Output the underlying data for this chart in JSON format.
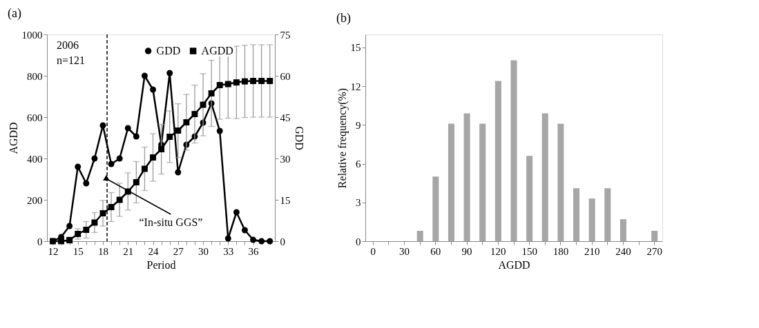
{
  "chart_data": [
    {
      "type": "line",
      "title": "(a)",
      "xlabel": "Period",
      "ylabel": "AGDD",
      "y2label": "GDD",
      "x": [
        12,
        13,
        14,
        15,
        16,
        17,
        18,
        19,
        20,
        21,
        22,
        23,
        24,
        25,
        26,
        27,
        28,
        29,
        30,
        31,
        32,
        33,
        34,
        35,
        36,
        37,
        38
      ],
      "xlim": [
        11.3,
        38.6
      ],
      "xticks": [
        12,
        {
          "value": 13,
          "label": null
        },
        {
          "value": 14,
          "label": null
        },
        15,
        {
          "value": 16,
          "label": null
        },
        {
          "value": 17,
          "label": null
        },
        18,
        {
          "value": 19,
          "label": null
        },
        {
          "value": 20,
          "label": null
        },
        21,
        {
          "value": 22,
          "label": null
        },
        {
          "value": 23,
          "label": null
        },
        24,
        {
          "value": 25,
          "label": null
        },
        {
          "value": 26,
          "label": null
        },
        27,
        {
          "value": 28,
          "label": null
        },
        {
          "value": 29,
          "label": null
        },
        30,
        {
          "value": 31,
          "label": null
        },
        {
          "value": 32,
          "label": null
        },
        33,
        {
          "value": 34,
          "label": null
        },
        {
          "value": 35,
          "label": null
        },
        36,
        {
          "value": 37,
          "label": null
        },
        {
          "value": 38,
          "label": null
        }
      ],
      "ylim": [
        0,
        1000
      ],
      "yticks": [
        0,
        200,
        400,
        600,
        800,
        1000
      ],
      "y2lim": [
        0,
        75
      ],
      "y2ticks": [
        0,
        15,
        30,
        45,
        60,
        75
      ],
      "grid": false,
      "legend": "top right",
      "series": [
        {
          "name": "GDD",
          "color": "#000000",
          "marker": "circle",
          "axis": "y2",
          "values": [
            0,
            1.5,
            5.5,
            27,
            21,
            30,
            42,
            28,
            30,
            41,
            38,
            60,
            55,
            35,
            61,
            25,
            35,
            38,
            43,
            50,
            40,
            1,
            10.5,
            4,
            0.5,
            0,
            0
          ]
        },
        {
          "name": "AGDD",
          "color": "#000000",
          "marker": "square",
          "values": [
            0,
            0,
            5,
            35,
            55,
            90,
            135,
            165,
            200,
            240,
            285,
            350,
            405,
            445,
            505,
            535,
            575,
            615,
            660,
            715,
            755,
            760,
            768,
            773,
            775,
            775,
            775
          ],
          "errors": [
            null,
            5,
            15,
            25,
            40,
            48,
            62,
            70,
            80,
            90,
            100,
            105,
            115,
            120,
            125,
            130,
            135,
            140,
            150,
            160,
            165,
            165,
            175,
            175,
            175,
            175,
            175
          ]
        }
      ],
      "ref_lines": [
        {
          "axis": "x",
          "value": 18.5,
          "line_style": "dashed",
          "color": "#000000"
        }
      ],
      "annotations": [
        "2006",
        "n=121",
        {
          "text": "“In-situ GGS”",
          "x": 18.5,
          "y": 300
        }
      ]
    },
    {
      "type": "bar",
      "title": "(b)",
      "xlabel": "AGDD",
      "ylabel": "Relative frequency(%)",
      "categories": [
        "0",
        null,
        "30",
        null,
        "60",
        null,
        "90",
        null,
        "120",
        null,
        "150",
        null,
        "180",
        null,
        "210",
        null,
        "240",
        null,
        "270"
      ],
      "values": [
        0,
        0,
        0,
        0.8,
        5,
        9.1,
        9.9,
        9.1,
        12.4,
        14,
        6.6,
        9.9,
        9.1,
        4.1,
        3.3,
        4.1,
        1.7,
        0,
        0.8
      ],
      "color": "#a6a6a6",
      "ylim": [
        0,
        16
      ],
      "yticks": [
        0,
        3,
        6,
        9,
        12,
        15
      ],
      "grid": false
    }
  ]
}
